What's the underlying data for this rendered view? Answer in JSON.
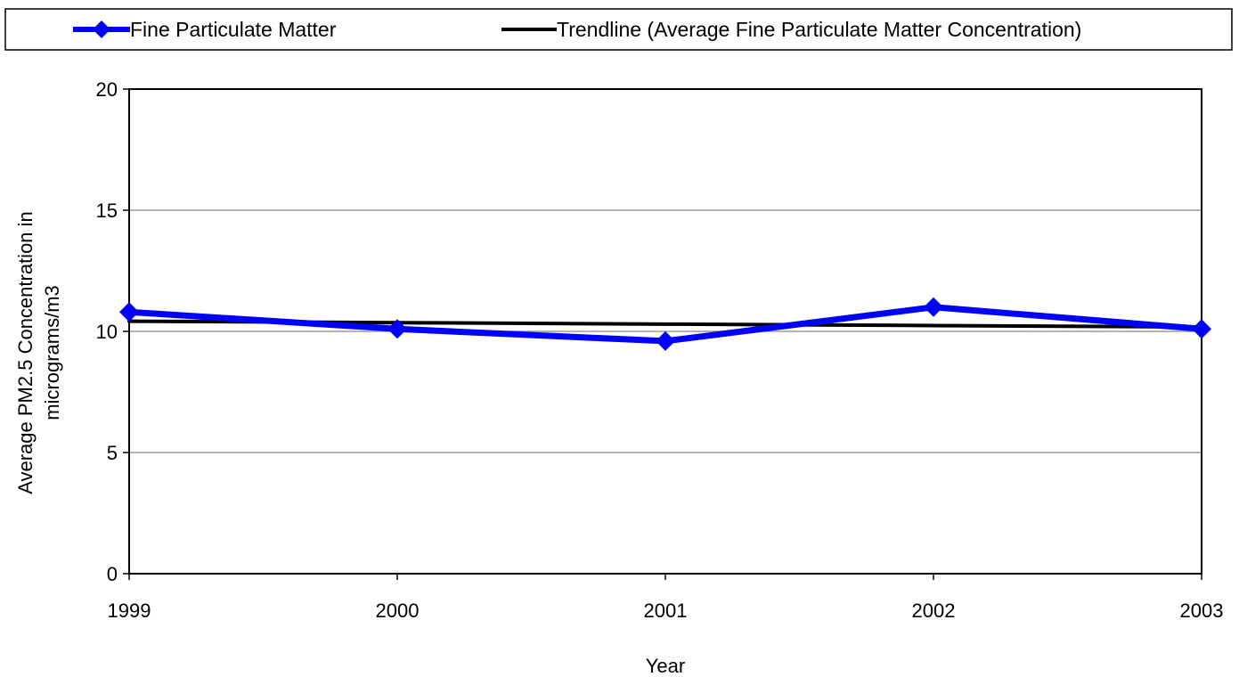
{
  "chart_data": {
    "type": "line",
    "title": "",
    "xlabel": "Year",
    "ylabel_lines": [
      "Average PM2.5 Concentration in",
      "micrograms/m3"
    ],
    "categories": [
      "1999",
      "2000",
      "2001",
      "2002",
      "2003"
    ],
    "y_ticks": [
      "0",
      "5",
      "10",
      "15",
      "20"
    ],
    "ylim": [
      0,
      20
    ],
    "grid": true,
    "legend_position": "top",
    "series": [
      {
        "name": "Fine Particulate Matter",
        "values": [
          10.8,
          10.1,
          9.6,
          11.0,
          10.1
        ],
        "color": "#0000ff",
        "marker": "diamond"
      },
      {
        "name": "Trendline (Average Fine Particulate Matter Concentration)",
        "values": [
          10.42,
          10.36,
          10.3,
          10.24,
          10.18
        ],
        "color": "#000000",
        "marker": "none"
      }
    ]
  }
}
